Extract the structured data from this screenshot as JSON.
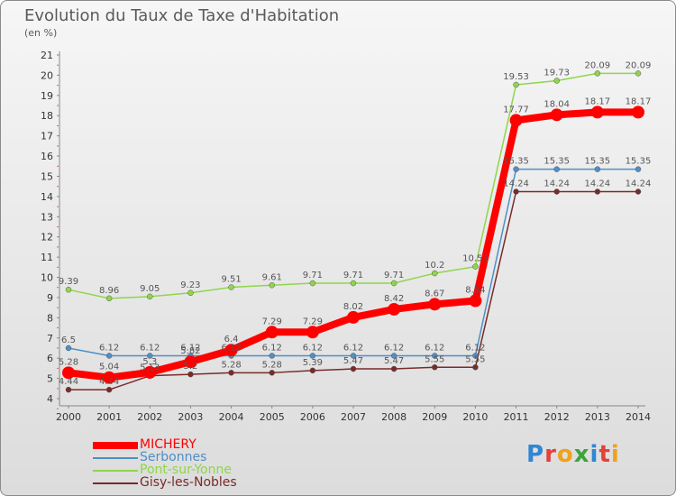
{
  "header": {
    "title": "Evolution du Taux de Taxe d'Habitation",
    "subtitle": "(en %)"
  },
  "logo": {
    "text": "Proxiti",
    "letter_colors": [
      "#2f86d4",
      "#e3413a",
      "#f0a21a",
      "#3aa63a",
      "#2f86d4",
      "#e3413a",
      "#f0a21a"
    ]
  },
  "chart_data": {
    "type": "line",
    "title": "Evolution du Taux de Taxe d'Habitation",
    "subtitle": "(en %)",
    "xlabel": "",
    "ylabel": "",
    "x": [
      "2000",
      "2001",
      "2002",
      "2003",
      "2004",
      "2005",
      "2006",
      "2007",
      "2008",
      "2009",
      "2010",
      "2011",
      "2012",
      "2013",
      "2014"
    ],
    "ylim": [
      4,
      21
    ],
    "yticks": [
      4,
      5,
      6,
      7,
      8,
      9,
      10,
      11,
      12,
      13,
      14,
      15,
      16,
      17,
      18,
      19,
      20,
      21
    ],
    "grid": false,
    "legend_position": "bottom-left",
    "series": [
      {
        "name": "MICHERY",
        "color": "#ff0000",
        "values": [
          5.28,
          5.04,
          5.3,
          5.82,
          6.4,
          7.29,
          7.29,
          8.02,
          8.42,
          8.67,
          8.84,
          17.77,
          18.04,
          18.17,
          18.17
        ],
        "labels": [
          "5.28",
          "5.04",
          "5.3",
          "5.82",
          "6.4",
          "7.29",
          "7.29",
          "8.02",
          "8.42",
          "8.67",
          "8.84",
          "17.77",
          "18.04",
          "18.17",
          "18.17"
        ]
      },
      {
        "name": "Serbonnes",
        "color": "#4f8fc8",
        "values": [
          6.5,
          6.12,
          6.12,
          6.12,
          6.12,
          6.12,
          6.12,
          6.12,
          6.12,
          6.12,
          6.12,
          15.35,
          15.35,
          15.35,
          15.35
        ],
        "labels": [
          "6.5",
          "6.12",
          "6.12",
          "6.12",
          "6.12",
          "6.12",
          "6.12",
          "6.12",
          "6.12",
          "6.12",
          "6.12",
          "15.35",
          "15.35",
          "15.35",
          "15.35"
        ]
      },
      {
        "name": "Pont-sur-Yonne",
        "color": "#8fd64a",
        "values": [
          9.39,
          8.96,
          9.05,
          9.23,
          9.51,
          9.61,
          9.71,
          9.71,
          9.71,
          10.2,
          10.53,
          19.53,
          19.73,
          20.09,
          20.09
        ],
        "labels": [
          "9.39",
          "8.96",
          "9.05",
          "9.23",
          "9.51",
          "9.61",
          "9.71",
          "9.71",
          "9.71",
          "10.2",
          "10.53",
          "19.53",
          "19.73",
          "20.09",
          "20.09"
        ]
      },
      {
        "name": "Gisy-les-Nobles",
        "color": "#7a2a2a",
        "values": [
          4.44,
          4.44,
          5.13,
          5.2,
          5.28,
          5.28,
          5.39,
          5.47,
          5.47,
          5.55,
          5.55,
          14.24,
          14.24,
          14.24,
          14.24
        ],
        "labels": [
          "4.44",
          "4.44",
          "5.13",
          "5.2",
          "5.28",
          "5.28",
          "5.39",
          "5.47",
          "5.47",
          "5.55",
          "5.55",
          "14.24",
          "14.24",
          "14.24",
          "14.24"
        ]
      }
    ]
  }
}
